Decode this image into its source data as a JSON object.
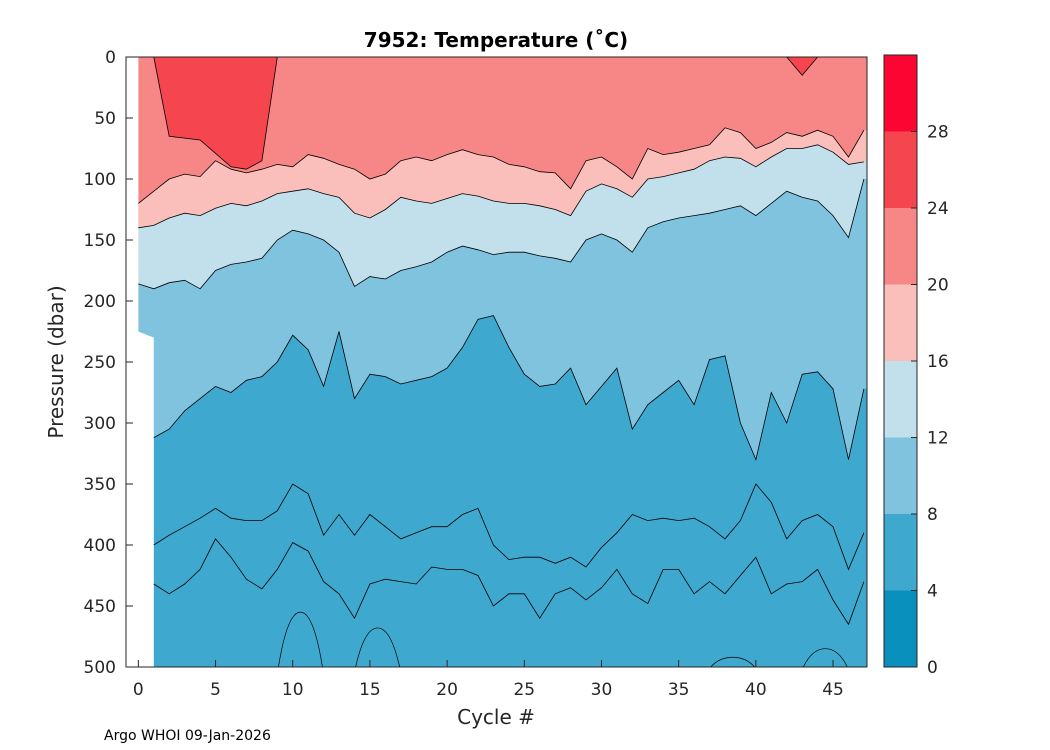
{
  "chart_data": {
    "type": "contour",
    "title": "7952:  Temperature (˚C)",
    "xlabel": "Cycle #",
    "ylabel": "Pressure (dbar)",
    "xlim": [
      -0.8,
      47.2
    ],
    "ylim": [
      0,
      500
    ],
    "y_reversed": true,
    "x_ticks": [
      0,
      5,
      10,
      15,
      20,
      25,
      30,
      35,
      40,
      45
    ],
    "y_ticks": [
      0,
      50,
      100,
      150,
      200,
      250,
      300,
      350,
      400,
      450,
      500
    ],
    "colorbar": {
      "range": [
        0,
        32
      ],
      "levels": [
        0,
        4,
        8,
        12,
        16,
        20,
        24,
        28,
        32
      ],
      "ticks": [
        0,
        4,
        8,
        12,
        16,
        20,
        24,
        28
      ],
      "colors": [
        "#0a90bd",
        "#3fa8cf",
        "#80c3de",
        "#c1e0ec",
        "#fbbfbb",
        "#f78686",
        "#f54650",
        "#fc0533"
      ]
    },
    "isotherms": [
      {
        "temp": 24,
        "x": [
          0,
          1,
          2,
          4,
          6,
          7,
          8,
          9,
          10,
          11,
          12,
          13,
          14,
          15,
          16,
          18,
          20,
          22,
          24,
          26,
          28,
          29,
          30,
          32,
          34,
          36,
          38,
          40,
          42,
          43,
          44,
          46,
          47
        ],
        "depth": [
          0,
          0,
          65,
          68,
          90,
          92,
          85,
          0,
          0,
          0,
          0,
          0,
          0,
          0,
          0,
          0,
          0,
          0,
          0,
          0,
          0,
          0,
          0,
          0,
          0,
          0,
          0,
          0,
          0,
          15,
          0,
          0,
          0
        ]
      },
      {
        "temp": 20,
        "x": [
          0,
          1,
          2,
          3,
          4,
          5,
          6,
          7,
          8,
          9,
          10,
          11,
          12,
          13,
          14,
          15,
          16,
          17,
          18,
          19,
          20,
          21,
          22,
          23,
          24,
          25,
          26,
          27,
          28,
          29,
          30,
          31,
          32,
          33,
          34,
          35,
          36,
          37,
          38,
          39,
          40,
          41,
          42,
          43,
          44,
          45,
          46,
          47
        ],
        "depth": [
          120,
          110,
          100,
          96,
          98,
          85,
          92,
          95,
          92,
          88,
          90,
          80,
          83,
          88,
          92,
          100,
          96,
          85,
          82,
          85,
          80,
          76,
          80,
          82,
          88,
          90,
          94,
          95,
          108,
          85,
          82,
          90,
          100,
          75,
          80,
          78,
          75,
          72,
          58,
          62,
          75,
          70,
          62,
          65,
          60,
          65,
          82,
          60
        ]
      },
      {
        "temp": 16,
        "x": [
          0,
          1,
          2,
          3,
          4,
          5,
          6,
          7,
          8,
          9,
          10,
          11,
          12,
          13,
          14,
          15,
          16,
          17,
          18,
          19,
          20,
          21,
          22,
          23,
          24,
          25,
          26,
          27,
          28,
          29,
          30,
          31,
          32,
          33,
          34,
          35,
          36,
          37,
          38,
          39,
          40,
          41,
          42,
          43,
          44,
          45,
          46,
          47
        ],
        "depth": [
          140,
          138,
          132,
          128,
          130,
          124,
          120,
          122,
          118,
          112,
          110,
          108,
          112,
          115,
          128,
          132,
          125,
          115,
          118,
          120,
          116,
          112,
          114,
          118,
          120,
          120,
          122,
          125,
          130,
          110,
          104,
          108,
          115,
          100,
          98,
          95,
          92,
          85,
          82,
          83,
          90,
          82,
          75,
          75,
          72,
          78,
          88,
          86
        ]
      },
      {
        "temp": 12,
        "x": [
          0,
          1,
          2,
          3,
          4,
          5,
          6,
          7,
          8,
          9,
          10,
          11,
          12,
          13,
          14,
          15,
          16,
          17,
          18,
          19,
          20,
          21,
          22,
          23,
          24,
          25,
          26,
          27,
          28,
          29,
          30,
          31,
          32,
          33,
          34,
          35,
          36,
          37,
          38,
          39,
          40,
          41,
          42,
          43,
          44,
          45,
          46,
          47
        ],
        "depth": [
          186,
          190,
          185,
          183,
          190,
          175,
          170,
          168,
          165,
          150,
          142,
          145,
          150,
          160,
          188,
          180,
          182,
          175,
          172,
          168,
          160,
          155,
          158,
          162,
          160,
          160,
          163,
          165,
          168,
          150,
          145,
          150,
          160,
          140,
          135,
          132,
          130,
          128,
          125,
          122,
          130,
          120,
          110,
          115,
          118,
          130,
          148,
          100
        ]
      },
      {
        "temp": 8,
        "x": [
          1,
          2,
          3,
          4,
          5,
          6,
          7,
          8,
          9,
          10,
          11,
          12,
          13,
          14,
          15,
          16,
          17,
          18,
          19,
          20,
          21,
          22,
          23,
          24,
          25,
          26,
          27,
          28,
          29,
          30,
          31,
          32,
          33,
          34,
          35,
          36,
          37,
          38,
          39,
          40,
          41,
          42,
          43,
          44,
          45,
          46,
          47
        ],
        "depth": [
          312,
          305,
          290,
          280,
          270,
          275,
          265,
          262,
          250,
          228,
          240,
          270,
          225,
          280,
          260,
          262,
          268,
          265,
          262,
          255,
          238,
          215,
          212,
          238,
          260,
          270,
          268,
          255,
          285,
          270,
          255,
          305,
          285,
          275,
          265,
          285,
          248,
          245,
          300,
          330,
          275,
          300,
          260,
          258,
          272,
          330,
          272
        ]
      },
      {
        "temp": 6,
        "x": [
          1,
          2,
          3,
          4,
          5,
          6,
          7,
          8,
          9,
          10,
          11,
          12,
          13,
          14,
          15,
          16,
          17,
          18,
          19,
          20,
          21,
          22,
          23,
          24,
          25,
          26,
          27,
          28,
          29,
          30,
          31,
          32,
          33,
          34,
          35,
          36,
          37,
          38,
          39,
          40,
          41,
          42,
          43,
          44,
          45,
          46,
          47
        ],
        "depth": [
          400,
          392,
          385,
          378,
          370,
          378,
          380,
          380,
          372,
          350,
          358,
          392,
          375,
          392,
          375,
          385,
          395,
          390,
          385,
          385,
          375,
          370,
          400,
          412,
          410,
          410,
          415,
          410,
          418,
          402,
          390,
          375,
          380,
          378,
          380,
          378,
          385,
          395,
          380,
          350,
          365,
          395,
          380,
          375,
          385,
          420,
          390
        ]
      },
      {
        "temp": 5,
        "x": [
          1,
          2,
          3,
          4,
          5,
          6,
          7,
          8,
          9,
          10,
          11,
          12,
          13,
          14,
          15,
          16,
          17,
          18,
          19,
          20,
          21,
          22,
          23,
          24,
          25,
          26,
          27,
          28,
          29,
          30,
          31,
          32,
          33,
          34,
          35,
          36,
          37,
          38,
          39,
          40,
          41,
          42,
          43,
          44,
          45,
          46,
          47
        ],
        "depth": [
          432,
          440,
          432,
          420,
          395,
          410,
          428,
          436,
          420,
          398,
          405,
          430,
          440,
          460,
          432,
          428,
          430,
          432,
          418,
          420,
          420,
          425,
          450,
          440,
          440,
          460,
          440,
          435,
          445,
          435,
          420,
          440,
          448,
          420,
          420,
          440,
          430,
          440,
          425,
          410,
          440,
          432,
          430,
          420,
          445,
          465,
          430
        ]
      }
    ],
    "cold_patches": [
      {
        "temp": 4,
        "center_cycle": 10.5,
        "top_depth": 455,
        "bottom_depth": 500
      },
      {
        "temp": 4,
        "center_cycle": 15.5,
        "top_depth": 468,
        "bottom_depth": 500
      },
      {
        "temp": 4,
        "center_cycle": 38.5,
        "top_depth": 492,
        "bottom_depth": 500
      },
      {
        "temp": 4,
        "center_cycle": 44.5,
        "top_depth": 485,
        "bottom_depth": 500
      }
    ]
  },
  "footer": {
    "text": "Argo WHOI 09-Jan-2026"
  }
}
